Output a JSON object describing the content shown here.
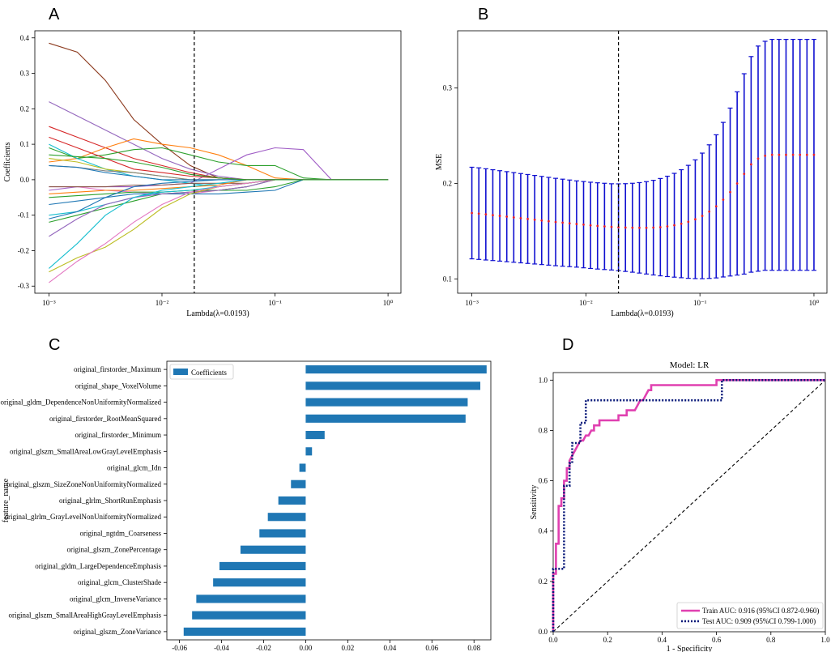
{
  "chart_data": [
    {
      "panel": "A",
      "type": "line",
      "xlabel": "Lambda(λ=0.0193)",
      "ylabel": "Coefficients",
      "xscale": "log",
      "xlim": [
        0.00075,
        1.3
      ],
      "ylim": [
        -0.32,
        0.42
      ],
      "xticks": [
        "10⁻³",
        "10⁻²",
        "10⁻¹",
        "10⁰"
      ],
      "yticks": [
        -0.3,
        -0.2,
        -0.1,
        0.0,
        0.1,
        0.2,
        0.3,
        0.4
      ],
      "vline": 0.0193,
      "x": [
        0.001,
        0.00178,
        0.00316,
        0.00562,
        0.01,
        0.0178,
        0.0316,
        0.0562,
        0.1,
        0.178,
        0.316,
        1.0
      ],
      "series": [
        {
          "color": "#8c3a1e",
          "values": [
            0.385,
            0.36,
            0.28,
            0.17,
            0.1,
            0.04,
            0.005,
            0,
            0,
            0,
            0,
            0
          ]
        },
        {
          "color": "#9467bd",
          "values": [
            0.22,
            0.18,
            0.14,
            0.1,
            0.06,
            0.03,
            0.01,
            0,
            0,
            0,
            0,
            0
          ]
        },
        {
          "color": "#d62728",
          "values": [
            0.15,
            0.12,
            0.09,
            0.06,
            0.04,
            0.02,
            0.005,
            0,
            0,
            0,
            0,
            0
          ]
        },
        {
          "color": "#ff7f0e",
          "values": [
            0.05,
            0.06,
            0.09,
            0.115,
            0.1,
            0.09,
            0.07,
            0.04,
            0.005,
            0,
            0,
            0
          ]
        },
        {
          "color": "#2ca02c",
          "values": [
            0.09,
            0.06,
            0.07,
            0.085,
            0.09,
            0.07,
            0.05,
            0.04,
            0.04,
            0.005,
            0,
            0
          ]
        },
        {
          "color": "#a05ec6",
          "values": [
            -0.03,
            -0.02,
            -0.02,
            -0.02,
            -0.015,
            -0.01,
            0.03,
            0.07,
            0.09,
            0.085,
            0,
            0
          ]
        },
        {
          "color": "#17becf",
          "values": [
            0.1,
            0.06,
            0.03,
            0.01,
            0.0,
            -0.01,
            -0.02,
            -0.01,
            0,
            0,
            0,
            0
          ]
        },
        {
          "color": "#bcbd22",
          "values": [
            0.06,
            0.05,
            0.03,
            0.02,
            0.01,
            0.0,
            0,
            0,
            0,
            0,
            0,
            0
          ]
        },
        {
          "color": "#7f7f7f",
          "values": [
            0.04,
            0.035,
            0.025,
            0.02,
            0.01,
            0.0,
            0,
            0,
            0,
            0,
            0,
            0
          ]
        },
        {
          "color": "#1f77b4",
          "values": [
            0.04,
            0.035,
            0.02,
            0.01,
            0.0,
            0.0,
            0,
            0,
            0,
            0,
            0,
            0
          ]
        },
        {
          "color": "#e377c2",
          "values": [
            -0.02,
            -0.02,
            -0.03,
            -0.035,
            -0.04,
            -0.04,
            -0.03,
            -0.02,
            0,
            0,
            0,
            0
          ]
        },
        {
          "color": "#2ca02c",
          "values": [
            -0.05,
            -0.045,
            -0.04,
            -0.035,
            -0.035,
            -0.03,
            -0.03,
            -0.03,
            -0.02,
            0,
            0,
            0
          ]
        },
        {
          "color": "#1f77b4",
          "values": [
            -0.07,
            -0.06,
            -0.05,
            -0.04,
            -0.04,
            -0.04,
            -0.04,
            -0.035,
            -0.03,
            0,
            0,
            0
          ]
        },
        {
          "color": "#8c564b",
          "values": [
            -0.02,
            -0.02,
            -0.02,
            -0.015,
            -0.015,
            -0.01,
            -0.01,
            -0.01,
            0,
            0,
            0,
            0
          ]
        },
        {
          "color": "#ff7f0e",
          "values": [
            -0.04,
            -0.035,
            -0.03,
            -0.03,
            -0.025,
            -0.02,
            -0.015,
            0,
            0,
            0,
            0,
            0
          ]
        },
        {
          "color": "#17becf",
          "values": [
            -0.1,
            -0.09,
            -0.07,
            -0.05,
            -0.035,
            -0.03,
            -0.02,
            -0.01,
            0,
            0,
            0,
            0
          ]
        },
        {
          "color": "#2ca02c",
          "values": [
            -0.12,
            -0.1,
            -0.08,
            -0.06,
            -0.04,
            -0.035,
            -0.03,
            -0.02,
            0,
            0,
            0,
            0
          ]
        },
        {
          "color": "#9467bd",
          "values": [
            -0.16,
            -0.11,
            -0.07,
            -0.05,
            -0.04,
            -0.035,
            -0.03,
            -0.02,
            0,
            0,
            0,
            0
          ]
        },
        {
          "color": "#17becf",
          "values": [
            -0.25,
            -0.18,
            -0.1,
            -0.05,
            -0.03,
            -0.02,
            -0.01,
            0,
            0,
            0,
            0,
            0
          ]
        },
        {
          "color": "#bcbd22",
          "values": [
            -0.26,
            -0.22,
            -0.19,
            -0.14,
            -0.08,
            -0.04,
            -0.02,
            -0.01,
            0,
            0,
            0,
            0
          ]
        },
        {
          "color": "#e377c2",
          "values": [
            -0.29,
            -0.23,
            -0.18,
            -0.12,
            -0.07,
            -0.035,
            -0.02,
            -0.01,
            0,
            0,
            0,
            0
          ]
        },
        {
          "color": "#1f77b4",
          "values": [
            -0.11,
            -0.09,
            -0.05,
            -0.02,
            -0.01,
            -0.005,
            0,
            0,
            0,
            0,
            0,
            0
          ]
        },
        {
          "color": "#d62728",
          "values": [
            0.12,
            0.09,
            0.06,
            0.03,
            0.02,
            0.01,
            0.005,
            0,
            0,
            0,
            0,
            0
          ]
        },
        {
          "color": "#2ca02c",
          "values": [
            0.07,
            0.065,
            0.06,
            0.05,
            0.035,
            0.015,
            0.005,
            0,
            0,
            0,
            0,
            0
          ]
        }
      ]
    },
    {
      "panel": "B",
      "type": "errorbar",
      "xlabel": "Lambda(λ=0.0193)",
      "ylabel": "MSE",
      "xscale": "log",
      "xlim": [
        0.00075,
        1.3
      ],
      "ylim": [
        0.085,
        0.36
      ],
      "xticks": [
        "10⁻³",
        "10⁻²",
        "10⁻¹",
        "10⁰"
      ],
      "yticks": [
        0.1,
        0.2,
        0.3
      ],
      "vline": 0.0193,
      "n_points": 50,
      "lambda_range": [
        0.001,
        1.0
      ],
      "mean": [
        0.169,
        0.1684,
        0.1676,
        0.1668,
        0.166,
        0.1652,
        0.1644,
        0.1636,
        0.1628,
        0.162,
        0.1612,
        0.1604,
        0.1596,
        0.1589,
        0.1582,
        0.1575,
        0.1568,
        0.1561,
        0.1555,
        0.155,
        0.1545,
        0.1541,
        0.1538,
        0.1536,
        0.1535,
        0.1535,
        0.1537,
        0.1542,
        0.155,
        0.1562,
        0.1578,
        0.1598,
        0.1625,
        0.166,
        0.1705,
        0.176,
        0.183,
        0.191,
        0.2,
        0.21,
        0.22,
        0.226,
        0.229,
        0.23,
        0.23,
        0.23,
        0.23,
        0.23,
        0.23,
        0.23
      ],
      "err": [
        0.048,
        0.048,
        0.0478,
        0.0476,
        0.0474,
        0.0472,
        0.047,
        0.0468,
        0.0466,
        0.0464,
        0.0462,
        0.046,
        0.0458,
        0.0456,
        0.0454,
        0.0452,
        0.0452,
        0.0452,
        0.0452,
        0.0452,
        0.0452,
        0.0455,
        0.046,
        0.0466,
        0.0474,
        0.0484,
        0.0496,
        0.051,
        0.0526,
        0.0544,
        0.0566,
        0.0592,
        0.0622,
        0.0658,
        0.07,
        0.075,
        0.081,
        0.088,
        0.096,
        0.105,
        0.113,
        0.118,
        0.12,
        0.121,
        0.121,
        0.121,
        0.121,
        0.121,
        0.121,
        0.121
      ],
      "bar_color": "#1010d0",
      "point_color": "#e8202a"
    },
    {
      "panel": "C",
      "type": "bar",
      "orientation": "horizontal",
      "ylabel": "feature_name",
      "legend": "Coefficients",
      "color": "#1f77b4",
      "xlim": [
        -0.066,
        0.088
      ],
      "xticks": [
        "-0.06",
        "-0.04",
        "-0.02",
        "0.00",
        "0.02",
        "0.04",
        "0.06",
        "0.08"
      ],
      "categories": [
        "original_firstorder_Maximum",
        "original_shape_VoxelVolume",
        "original_gldm_DependenceNonUniformityNormalized",
        "original_firstorder_RootMeanSquared",
        "original_firstorder_Minimum",
        "original_glszm_SmallAreaLowGrayLevelEmphasis",
        "original_glcm_Idn",
        "original_glszm_SizeZoneNonUniformityNormalized",
        "original_glrlm_ShortRunEmphasis",
        "original_glrlm_GrayLevelNonUniformityNormalized",
        "original_ngtdm_Coarseness",
        "original_glszm_ZonePercentage",
        "original_gldm_LargeDependenceEmphasis",
        "original_glcm_ClusterShade",
        "original_glcm_InverseVariance",
        "original_glszm_SmallAreaHighGrayLevelEmphasis",
        "original_glszm_ZoneVariance"
      ],
      "values": [
        0.086,
        0.083,
        0.077,
        0.076,
        0.009,
        0.003,
        -0.003,
        -0.007,
        -0.013,
        -0.018,
        -0.022,
        -0.031,
        -0.041,
        -0.044,
        -0.052,
        -0.054,
        -0.058
      ]
    },
    {
      "panel": "D",
      "type": "line",
      "title": "Model: LR",
      "xlabel": "1 - Specificity",
      "ylabel": "Sensitivity",
      "xlim": [
        0,
        1
      ],
      "ylim": [
        0,
        1.03
      ],
      "xticks": [
        "0.0",
        "0.2",
        "0.4",
        "0.6",
        "0.8",
        "1.0"
      ],
      "yticks": [
        "0.0",
        "0.2",
        "0.4",
        "0.6",
        "0.8",
        "1.0"
      ],
      "series": [
        {
          "name": "Train AUC: 0.916 (95%CI 0.872-0.960)",
          "color": "#e040b0",
          "style": "solid",
          "x": [
            0,
            0,
            0.01,
            0.01,
            0.02,
            0.02,
            0.03,
            0.03,
            0.04,
            0.04,
            0.05,
            0.05,
            0.06,
            0.06,
            0.07,
            0.08,
            0.09,
            0.1,
            0.11,
            0.12,
            0.13,
            0.14,
            0.15,
            0.15,
            0.17,
            0.17,
            0.2,
            0.24,
            0.24,
            0.27,
            0.27,
            0.3,
            0.31,
            0.32,
            0.33,
            0.34,
            0.35,
            0.36,
            0.36,
            0.6,
            0.6,
            1.0
          ],
          "y": [
            0,
            0.23,
            0.23,
            0.35,
            0.35,
            0.5,
            0.5,
            0.53,
            0.53,
            0.6,
            0.6,
            0.65,
            0.65,
            0.68,
            0.7,
            0.72,
            0.74,
            0.76,
            0.76,
            0.78,
            0.78,
            0.8,
            0.8,
            0.82,
            0.82,
            0.84,
            0.84,
            0.84,
            0.86,
            0.86,
            0.88,
            0.88,
            0.9,
            0.92,
            0.92,
            0.94,
            0.96,
            0.96,
            0.98,
            0.98,
            1.0,
            1.0
          ]
        },
        {
          "name": "Test AUC: 0.909 (95%CI 0.799-1.000)",
          "color": "#0a1a7a",
          "style": "dotted",
          "x": [
            0,
            0,
            0.04,
            0.04,
            0.06,
            0.06,
            0.07,
            0.07,
            0.1,
            0.1,
            0.12,
            0.12,
            0.15,
            0.15,
            0.62,
            0.62,
            1.0
          ],
          "y": [
            0,
            0.25,
            0.25,
            0.58,
            0.58,
            0.67,
            0.67,
            0.75,
            0.75,
            0.83,
            0.83,
            0.92,
            0.92,
            0.92,
            0.92,
            1.0,
            1.0
          ]
        }
      ],
      "diagonal": true
    }
  ],
  "panels": {
    "A": {
      "letter": "A"
    },
    "B": {
      "letter": "B"
    },
    "C": {
      "letter": "C"
    },
    "D": {
      "letter": "D"
    }
  }
}
